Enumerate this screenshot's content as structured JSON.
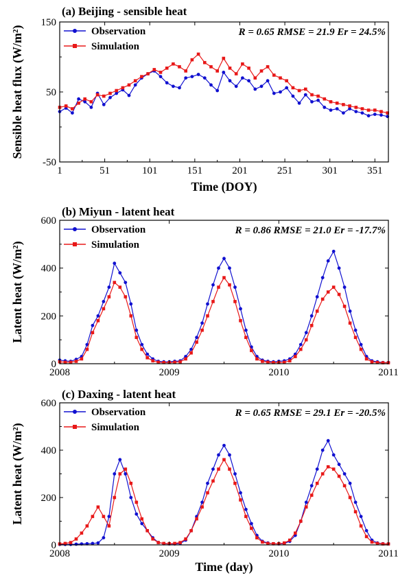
{
  "colors": {
    "observation": "#1010d0",
    "simulation": "#e81818",
    "axis": "#000000"
  },
  "chart_data": [
    {
      "id": "a",
      "type": "line",
      "title": "(a) Beijing - sensible heat",
      "xlabel": "Time (DOY)",
      "ylabel": "Sensible heat flux (W/m²)",
      "xlim": [
        1,
        366
      ],
      "ylim": [
        -50,
        150
      ],
      "xticks": [
        1,
        51,
        101,
        151,
        201,
        251,
        301,
        351
      ],
      "yticks": [
        -50,
        50,
        150
      ],
      "grid": false,
      "legend": "top-left",
      "stats": "R = 0.65  RMSE = 21.9 Er = 24.5%",
      "series": [
        {
          "name": "Observation",
          "x": [
            1,
            8,
            15,
            22,
            29,
            36,
            43,
            50,
            57,
            64,
            71,
            78,
            85,
            92,
            99,
            106,
            113,
            120,
            127,
            134,
            141,
            148,
            155,
            162,
            169,
            176,
            183,
            190,
            197,
            204,
            211,
            218,
            225,
            232,
            239,
            246,
            253,
            260,
            267,
            274,
            281,
            288,
            295,
            302,
            309,
            316,
            323,
            330,
            337,
            344,
            351,
            358,
            365
          ],
          "values": [
            22,
            27,
            20,
            40,
            36,
            28,
            48,
            32,
            42,
            48,
            53,
            45,
            60,
            70,
            76,
            80,
            72,
            63,
            58,
            56,
            70,
            72,
            75,
            70,
            60,
            52,
            78,
            66,
            58,
            70,
            66,
            54,
            58,
            66,
            48,
            50,
            56,
            44,
            34,
            46,
            36,
            38,
            28,
            24,
            26,
            20,
            26,
            22,
            20,
            16,
            18,
            17,
            15
          ]
        },
        {
          "name": "Simulation",
          "x": [
            1,
            8,
            15,
            22,
            29,
            36,
            43,
            50,
            57,
            64,
            71,
            78,
            85,
            92,
            99,
            106,
            113,
            120,
            127,
            134,
            141,
            148,
            155,
            162,
            169,
            176,
            183,
            190,
            197,
            204,
            211,
            218,
            225,
            232,
            239,
            246,
            253,
            260,
            267,
            274,
            281,
            288,
            295,
            302,
            309,
            316,
            323,
            330,
            337,
            344,
            351,
            358,
            365
          ],
          "values": [
            28,
            30,
            26,
            34,
            40,
            36,
            46,
            44,
            48,
            52,
            56,
            60,
            66,
            72,
            76,
            82,
            78,
            84,
            90,
            86,
            80,
            96,
            104,
            92,
            86,
            80,
            98,
            84,
            76,
            90,
            84,
            70,
            80,
            86,
            74,
            70,
            66,
            56,
            52,
            54,
            46,
            44,
            40,
            36,
            34,
            32,
            30,
            28,
            26,
            24,
            24,
            22,
            20
          ]
        }
      ]
    },
    {
      "id": "b",
      "type": "line",
      "title": "(b) Miyun - latent heat",
      "xlabel": "",
      "ylabel": "Latent heat (W/m²)",
      "xlim": [
        2008,
        2011
      ],
      "ylim": [
        0,
        600
      ],
      "xticks": [
        2008,
        2009,
        2010,
        2011
      ],
      "yticks": [
        0,
        200,
        400,
        600
      ],
      "grid": false,
      "legend": "top-left",
      "stats": "R = 0.86  RMSE = 21.0 Er = -17.7%",
      "series": [
        {
          "name": "Observation",
          "x": [
            2008.0,
            2008.05,
            2008.1,
            2008.15,
            2008.2,
            2008.25,
            2008.3,
            2008.35,
            2008.4,
            2008.45,
            2008.5,
            2008.55,
            2008.6,
            2008.65,
            2008.7,
            2008.75,
            2008.8,
            2008.85,
            2008.9,
            2008.95,
            2009.0,
            2009.05,
            2009.1,
            2009.15,
            2009.2,
            2009.25,
            2009.3,
            2009.35,
            2009.4,
            2009.45,
            2009.5,
            2009.55,
            2009.6,
            2009.65,
            2009.7,
            2009.75,
            2009.8,
            2009.85,
            2009.9,
            2009.95,
            2010.0,
            2010.05,
            2010.1,
            2010.15,
            2010.2,
            2010.25,
            2010.3,
            2010.35,
            2010.4,
            2010.45,
            2010.5,
            2010.55,
            2010.6,
            2010.65,
            2010.7,
            2010.75,
            2010.8,
            2010.85,
            2010.9,
            2010.95,
            2011.0
          ],
          "values": [
            15,
            12,
            10,
            18,
            30,
            80,
            160,
            200,
            260,
            320,
            420,
            380,
            340,
            250,
            140,
            80,
            40,
            20,
            10,
            8,
            8,
            10,
            12,
            30,
            60,
            110,
            170,
            250,
            330,
            400,
            440,
            400,
            320,
            230,
            140,
            70,
            30,
            15,
            10,
            8,
            10,
            12,
            20,
            40,
            80,
            130,
            200,
            280,
            360,
            430,
            470,
            400,
            320,
            220,
            140,
            80,
            30,
            12,
            8,
            5,
            5
          ]
        },
        {
          "name": "Simulation",
          "x": [
            2008.0,
            2008.05,
            2008.1,
            2008.15,
            2008.2,
            2008.25,
            2008.3,
            2008.35,
            2008.4,
            2008.45,
            2008.5,
            2008.55,
            2008.6,
            2008.65,
            2008.7,
            2008.75,
            2008.8,
            2008.85,
            2008.9,
            2008.95,
            2009.0,
            2009.05,
            2009.1,
            2009.15,
            2009.2,
            2009.25,
            2009.3,
            2009.35,
            2009.4,
            2009.45,
            2009.5,
            2009.55,
            2009.6,
            2009.65,
            2009.7,
            2009.75,
            2009.8,
            2009.85,
            2009.9,
            2009.95,
            2010.0,
            2010.05,
            2010.1,
            2010.15,
            2010.2,
            2010.25,
            2010.3,
            2010.35,
            2010.4,
            2010.45,
            2010.5,
            2010.55,
            2010.6,
            2010.65,
            2010.7,
            2010.75,
            2010.8,
            2010.85,
            2010.9,
            2010.95,
            2011.0
          ],
          "values": [
            8,
            6,
            6,
            10,
            20,
            60,
            130,
            180,
            230,
            280,
            340,
            320,
            280,
            200,
            110,
            60,
            25,
            12,
            6,
            5,
            5,
            6,
            8,
            20,
            45,
            90,
            140,
            200,
            260,
            320,
            360,
            330,
            260,
            180,
            110,
            55,
            20,
            10,
            6,
            5,
            5,
            6,
            12,
            30,
            60,
            100,
            160,
            220,
            270,
            300,
            320,
            290,
            240,
            170,
            110,
            60,
            20,
            8,
            5,
            4,
            4
          ]
        }
      ]
    },
    {
      "id": "c",
      "type": "line",
      "title": "(c) Daxing - latent heat",
      "xlabel": "Time (day)",
      "ylabel": "Latent heat (W/m²)",
      "xlim": [
        2008,
        2011
      ],
      "ylim": [
        0,
        600
      ],
      "xticks": [
        2008,
        2009,
        2010,
        2011
      ],
      "yticks": [
        0,
        200,
        400,
        600
      ],
      "grid": false,
      "legend": "top-left",
      "stats": "R = 0.65 RMSE = 29.1 Er = -20.5%",
      "series": [
        {
          "name": "Observation",
          "x": [
            2008.0,
            2008.05,
            2008.1,
            2008.15,
            2008.2,
            2008.25,
            2008.3,
            2008.35,
            2008.4,
            2008.45,
            2008.5,
            2008.55,
            2008.6,
            2008.65,
            2008.7,
            2008.75,
            2008.8,
            2008.85,
            2008.9,
            2008.95,
            2009.0,
            2009.05,
            2009.1,
            2009.15,
            2009.2,
            2009.25,
            2009.3,
            2009.35,
            2009.4,
            2009.45,
            2009.5,
            2009.55,
            2009.6,
            2009.65,
            2009.7,
            2009.75,
            2009.8,
            2009.85,
            2009.9,
            2009.95,
            2010.0,
            2010.05,
            2010.1,
            2010.15,
            2010.2,
            2010.25,
            2010.3,
            2010.35,
            2010.4,
            2010.45,
            2010.5,
            2010.55,
            2010.6,
            2010.65,
            2010.7,
            2010.75,
            2010.8,
            2010.85,
            2010.9,
            2010.95,
            2011.0
          ],
          "values": [
            2,
            2,
            2,
            3,
            4,
            5,
            6,
            8,
            30,
            120,
            300,
            360,
            300,
            200,
            130,
            90,
            60,
            30,
            10,
            5,
            4,
            4,
            6,
            20,
            60,
            120,
            180,
            260,
            320,
            380,
            420,
            380,
            300,
            220,
            150,
            90,
            40,
            15,
            8,
            5,
            4,
            6,
            15,
            40,
            100,
            180,
            250,
            320,
            400,
            440,
            380,
            340,
            300,
            260,
            180,
            120,
            60,
            20,
            8,
            5,
            4
          ]
        },
        {
          "name": "Simulation",
          "x": [
            2008.0,
            2008.05,
            2008.1,
            2008.15,
            2008.2,
            2008.25,
            2008.3,
            2008.35,
            2008.4,
            2008.45,
            2008.5,
            2008.55,
            2008.6,
            2008.65,
            2008.7,
            2008.75,
            2008.8,
            2008.85,
            2008.9,
            2008.95,
            2009.0,
            2009.05,
            2009.1,
            2009.15,
            2009.2,
            2009.25,
            2009.3,
            2009.35,
            2009.4,
            2009.45,
            2009.5,
            2009.55,
            2009.6,
            2009.65,
            2009.7,
            2009.75,
            2009.8,
            2009.85,
            2009.9,
            2009.95,
            2010.0,
            2010.05,
            2010.1,
            2010.15,
            2010.2,
            2010.25,
            2010.3,
            2010.35,
            2010.4,
            2010.45,
            2010.5,
            2010.55,
            2010.6,
            2010.65,
            2010.7,
            2010.75,
            2010.8,
            2010.85,
            2010.9,
            2010.95,
            2011.0
          ],
          "values": [
            4,
            6,
            10,
            25,
            50,
            80,
            120,
            160,
            120,
            80,
            200,
            300,
            320,
            260,
            180,
            110,
            60,
            25,
            10,
            6,
            5,
            6,
            10,
            25,
            60,
            110,
            160,
            220,
            270,
            320,
            360,
            320,
            260,
            190,
            120,
            70,
            30,
            12,
            6,
            5,
            5,
            8,
            20,
            50,
            100,
            160,
            210,
            260,
            300,
            330,
            320,
            290,
            250,
            200,
            140,
            80,
            35,
            12,
            6,
            4,
            4
          ]
        }
      ]
    }
  ]
}
